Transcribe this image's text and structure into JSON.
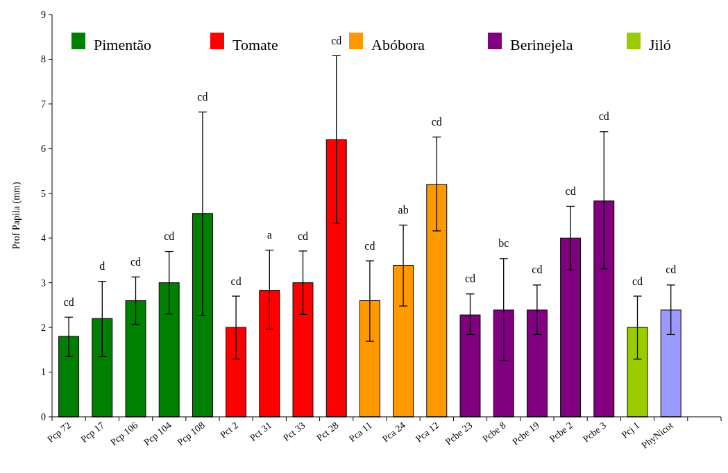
{
  "chart_data": {
    "type": "bar",
    "ylabel": "Prof Papila (mm)",
    "categories": [
      "Pcp 72",
      "Pcp 17",
      "Pcp 106",
      "Pcp 104",
      "Pcp 108",
      "Pct 2",
      "Pct 31",
      "Pct 33",
      "Pct 28",
      "Pca 11",
      "Pca 24",
      "Pca 12",
      "Pcbe 23",
      "Pcbe 8",
      "Pcbe 19",
      "Pcbe 2",
      "Pcbe 3",
      "Pcj 1",
      "PhyNicot",
      null
    ],
    "series": [
      {
        "name": "Pimentão",
        "color": "#008000",
        "values": [
          1.8,
          2.2,
          2.6,
          3.0,
          4.55,
          null,
          null,
          null,
          null,
          null,
          null,
          null,
          null,
          null,
          null,
          null,
          null,
          null,
          null,
          null
        ],
        "errors": [
          [
            1.35,
            2.23
          ],
          [
            1.35,
            3.03
          ],
          [
            2.07,
            3.13
          ],
          [
            2.3,
            3.7
          ],
          [
            2.27,
            6.82
          ],
          null,
          null,
          null,
          null,
          null,
          null,
          null,
          null,
          null,
          null,
          null,
          null,
          null,
          null,
          null
        ]
      },
      {
        "name": "Tomate",
        "color": "#ff0000",
        "values": [
          null,
          null,
          null,
          null,
          null,
          2.0,
          2.83,
          3.0,
          6.2,
          null,
          null,
          null,
          null,
          null,
          null,
          null,
          null,
          null,
          null,
          null
        ],
        "errors": [
          null,
          null,
          null,
          null,
          null,
          [
            1.29,
            2.7
          ],
          [
            1.96,
            3.73
          ],
          [
            2.29,
            3.71
          ],
          [
            4.33,
            8.08
          ],
          null,
          null,
          null,
          null,
          null,
          null,
          null,
          null,
          null,
          null,
          null
        ]
      },
      {
        "name": "Abóbora",
        "color": "#ff9900",
        "values": [
          null,
          null,
          null,
          null,
          null,
          null,
          null,
          null,
          null,
          2.6,
          3.39,
          5.2,
          null,
          null,
          null,
          null,
          null,
          null,
          null,
          null
        ],
        "errors": [
          null,
          null,
          null,
          null,
          null,
          null,
          null,
          null,
          null,
          [
            1.69,
            3.49
          ],
          [
            2.48,
            4.29
          ],
          [
            4.16,
            6.26
          ],
          null,
          null,
          null,
          null,
          null,
          null,
          null,
          null
        ]
      },
      {
        "name": "Berinejela",
        "color": "#800080",
        "values": [
          null,
          null,
          null,
          null,
          null,
          null,
          null,
          null,
          null,
          null,
          null,
          null,
          2.28,
          2.39,
          2.39,
          4.0,
          4.83,
          null,
          null,
          null
        ],
        "errors": [
          null,
          null,
          null,
          null,
          null,
          null,
          null,
          null,
          null,
          null,
          null,
          null,
          [
            1.84,
            2.75
          ],
          [
            1.26,
            3.54
          ],
          [
            1.84,
            2.95
          ],
          [
            3.29,
            4.71
          ],
          [
            3.31,
            6.38
          ],
          null,
          null,
          null
        ]
      },
      {
        "name": "Jiló",
        "color": "#99cc00",
        "values": [
          null,
          null,
          null,
          null,
          null,
          null,
          null,
          null,
          null,
          null,
          null,
          null,
          null,
          null,
          null,
          null,
          null,
          2.0,
          null,
          null
        ],
        "errors": [
          null,
          null,
          null,
          null,
          null,
          null,
          null,
          null,
          null,
          null,
          null,
          null,
          null,
          null,
          null,
          null,
          null,
          [
            1.29,
            2.7
          ],
          null,
          null
        ]
      },
      {
        "color": "#9999ff",
        "values": [
          null,
          null,
          null,
          null,
          null,
          null,
          null,
          null,
          null,
          null,
          null,
          null,
          null,
          null,
          null,
          null,
          null,
          null,
          2.39,
          null
        ],
        "errors": [
          null,
          null,
          null,
          null,
          null,
          null,
          null,
          null,
          null,
          null,
          null,
          null,
          null,
          null,
          null,
          null,
          null,
          null,
          [
            1.84,
            2.95
          ],
          null
        ]
      }
    ],
    "ylim": [
      0,
      9
    ],
    "yticks": [
      0,
      1,
      2,
      3,
      4,
      5,
      6,
      7,
      8,
      9
    ],
    "grid": false,
    "legend": "top",
    "annotations": [
      "cd",
      "d",
      "cd",
      "cd",
      "cd",
      "cd",
      "a",
      "cd",
      "cd",
      "cd",
      "ab",
      "cd",
      "cd",
      "bc",
      "cd",
      "cd",
      "cd",
      "cd",
      "cd"
    ]
  }
}
